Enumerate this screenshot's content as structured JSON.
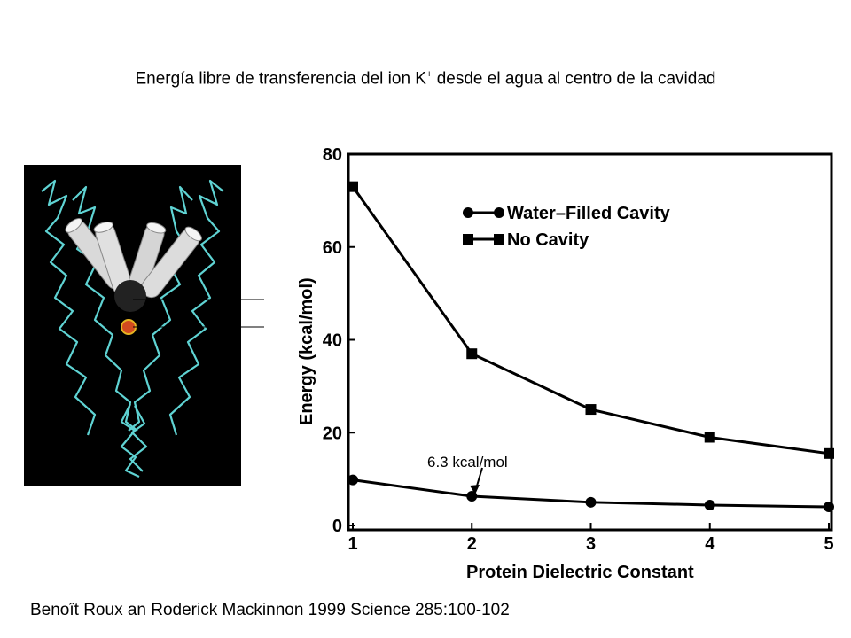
{
  "title_main": "Energía libre de transferencia del ion K",
  "title_sup": "+",
  "title_rest": " desde el agua al centro de la cavidad",
  "citation": "Benoît Roux an Roderick Mackinnon 1999 Science 285:100-102",
  "annotation": "6.3 kcal/mol",
  "colors": {
    "molecule_bg": "#000000",
    "backbone": "#5fd3d3",
    "helix": "#dcdcdc",
    "ion": "#d24a1f"
  },
  "chart_data": {
    "type": "line",
    "xlabel": "Protein Dielectric Constant",
    "ylabel": "Energy (kcal/mol)",
    "x": [
      1,
      2,
      3,
      4,
      5
    ],
    "xlim": [
      1,
      5
    ],
    "ylim": [
      0,
      80
    ],
    "yticks": [
      0,
      20,
      40,
      60,
      80
    ],
    "xticks": [
      1,
      2,
      3,
      4,
      5
    ],
    "legend_position": "top-right",
    "series": [
      {
        "name": "Water–Filled Cavity",
        "marker": "circle",
        "values": [
          9.8,
          6.3,
          5.0,
          4.4,
          4.0
        ]
      },
      {
        "name": "No Cavity",
        "marker": "square",
        "values": [
          73,
          37,
          25,
          19,
          15.5
        ]
      }
    ]
  }
}
